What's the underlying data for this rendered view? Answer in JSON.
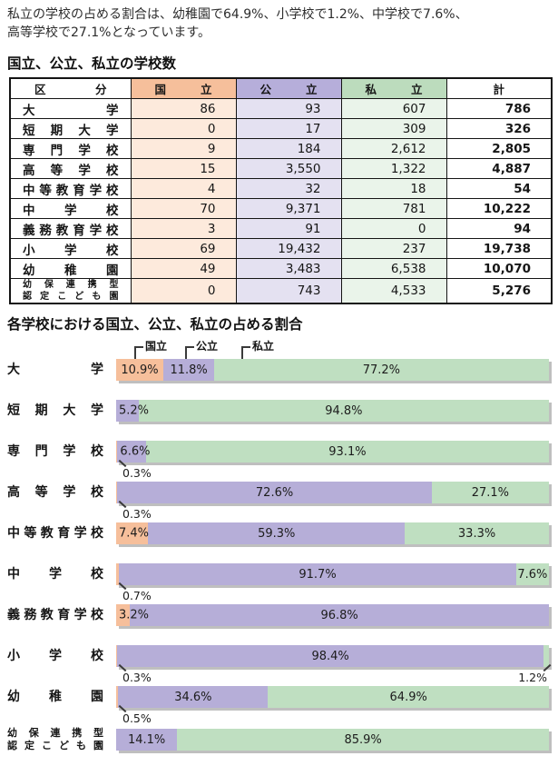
{
  "intro": {
    "line1": "私立の学校の占める割合は、幼稚園で64.9%、小学校で1.2%、中学校で7.6%、",
    "line2": "高等学校で27.1%となっています。"
  },
  "table": {
    "title": "国立、公立、私立の学校数",
    "columns": [
      "区分",
      "国立",
      "公立",
      "私立",
      "計"
    ],
    "rows": [
      {
        "label": "大学",
        "values": [
          "86",
          "93",
          "607",
          "786"
        ]
      },
      {
        "label": "短期大学",
        "values": [
          "0",
          "17",
          "309",
          "326"
        ]
      },
      {
        "label": "専門学校",
        "values": [
          "9",
          "184",
          "2,612",
          "2,805"
        ]
      },
      {
        "label": "高等学校",
        "values": [
          "15",
          "3,550",
          "1,322",
          "4,887"
        ]
      },
      {
        "label": "中等教育学校",
        "values": [
          "4",
          "32",
          "18",
          "54"
        ]
      },
      {
        "label": "中学校",
        "values": [
          "70",
          "9,371",
          "781",
          "10,222"
        ]
      },
      {
        "label": "義務教育学校",
        "values": [
          "3",
          "91",
          "0",
          "94"
        ]
      },
      {
        "label": "小学校",
        "values": [
          "69",
          "19,432",
          "237",
          "19,738"
        ]
      },
      {
        "label": "幼稚園",
        "values": [
          "49",
          "3,483",
          "6,538",
          "10,070"
        ]
      },
      {
        "label": "幼保連携型\n認定こども園",
        "values": [
          "0",
          "743",
          "4,533",
          "5,276"
        ],
        "small": true
      }
    ]
  },
  "chart_data": {
    "type": "bar",
    "stacked": true,
    "orientation": "horizontal",
    "unit": "%",
    "xlim": [
      0,
      100
    ],
    "title": "各学校における国立、公立、私立の占める割合",
    "legend_position": "top",
    "legend": [
      {
        "key": "national",
        "name": "国立",
        "color": "#f6bf9b"
      },
      {
        "key": "public",
        "name": "公立",
        "color": "#b6aed8"
      },
      {
        "key": "private",
        "name": "私立",
        "color": "#bfdfc1"
      }
    ],
    "categories": [
      "大学",
      "短期大学",
      "専門学校",
      "高等学校",
      "中等教育学校",
      "中学校",
      "義務教育学校",
      "小学校",
      "幼稚園",
      "幼保連携型認定こども園"
    ],
    "series": [
      {
        "name": "国立",
        "values": [
          10.9,
          0,
          0.3,
          0.3,
          7.4,
          0.7,
          3.2,
          0.3,
          0.5,
          0
        ]
      },
      {
        "name": "公立",
        "values": [
          11.8,
          5.2,
          6.6,
          72.6,
          59.3,
          91.7,
          96.8,
          98.4,
          34.6,
          14.1
        ]
      },
      {
        "name": "私立",
        "values": [
          77.2,
          94.8,
          93.1,
          27.1,
          33.3,
          7.6,
          0,
          1.2,
          64.9,
          85.9
        ]
      }
    ],
    "rows": [
      {
        "label": "大学",
        "segments": [
          {
            "series": 0,
            "value": 10.9,
            "text": "10.9%",
            "mode": "center"
          },
          {
            "series": 1,
            "value": 11.8,
            "text": "11.8%",
            "mode": "center"
          },
          {
            "series": 2,
            "value": 77.2,
            "text": "77.2%",
            "mode": "center"
          }
        ]
      },
      {
        "label": "短期大学",
        "segments": [
          {
            "series": 1,
            "value": 5.2,
            "text": "5.2%",
            "mode": "left"
          },
          {
            "series": 2,
            "value": 94.8,
            "text": "94.8%",
            "mode": "center"
          }
        ]
      },
      {
        "label": "専門学校",
        "segments": [
          {
            "series": 0,
            "value": 0.3,
            "text": "0.3%",
            "mode": "callout-left"
          },
          {
            "series": 1,
            "value": 6.6,
            "text": "6.6%",
            "mode": "left"
          },
          {
            "series": 2,
            "value": 93.1,
            "text": "93.1%",
            "mode": "center"
          }
        ]
      },
      {
        "label": "高等学校",
        "segments": [
          {
            "series": 0,
            "value": 0.3,
            "text": "0.3%",
            "mode": "callout-left"
          },
          {
            "series": 1,
            "value": 72.6,
            "text": "72.6%",
            "mode": "center"
          },
          {
            "series": 2,
            "value": 27.1,
            "text": "27.1%",
            "mode": "center"
          }
        ]
      },
      {
        "label": "中等教育学校",
        "segments": [
          {
            "series": 0,
            "value": 7.4,
            "text": "7.4%",
            "mode": "left"
          },
          {
            "series": 1,
            "value": 59.3,
            "text": "59.3%",
            "mode": "center"
          },
          {
            "series": 2,
            "value": 33.3,
            "text": "33.3%",
            "mode": "center"
          }
        ]
      },
      {
        "label": "中学校",
        "segments": [
          {
            "series": 0,
            "value": 0.7,
            "text": "0.7%",
            "mode": "callout-left"
          },
          {
            "series": 1,
            "value": 91.7,
            "text": "91.7%",
            "mode": "center"
          },
          {
            "series": 2,
            "value": 7.6,
            "text": "7.6%",
            "mode": "center"
          }
        ]
      },
      {
        "label": "義務教育学校",
        "segments": [
          {
            "series": 0,
            "value": 3.2,
            "text": "3.2%",
            "mode": "left"
          },
          {
            "series": 1,
            "value": 96.8,
            "text": "96.8%",
            "mode": "center"
          }
        ]
      },
      {
        "label": "小学校",
        "segments": [
          {
            "series": 0,
            "value": 0.3,
            "text": "0.3%",
            "mode": "callout-left"
          },
          {
            "series": 1,
            "value": 98.4,
            "text": "98.4%",
            "mode": "center"
          },
          {
            "series": 2,
            "value": 1.2,
            "text": "1.2%",
            "mode": "callout-right"
          }
        ]
      },
      {
        "label": "幼稚園",
        "segments": [
          {
            "series": 0,
            "value": 0.5,
            "text": "0.5%",
            "mode": "callout-left"
          },
          {
            "series": 1,
            "value": 34.6,
            "text": "34.6%",
            "mode": "center"
          },
          {
            "series": 2,
            "value": 64.9,
            "text": "64.9%",
            "mode": "center"
          }
        ]
      },
      {
        "label": "幼保連携型\n認定こども園",
        "small": true,
        "segments": [
          {
            "series": 1,
            "value": 14.1,
            "text": "14.1%",
            "mode": "center"
          },
          {
            "series": 2,
            "value": 85.9,
            "text": "85.9%",
            "mode": "center"
          }
        ]
      }
    ]
  }
}
